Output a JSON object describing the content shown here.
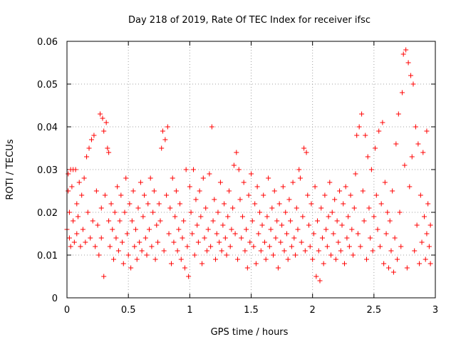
{
  "chart_data": {
    "type": "scatter",
    "title": "Day 218 of 2019, Rate Of TEC Index for receiver ifsc",
    "xlabel": "GPS time / hours",
    "ylabel": "ROTI / TECUs",
    "xlim": [
      0,
      3
    ],
    "ylim": [
      0,
      0.06
    ],
    "xticks": [
      0,
      0.5,
      1,
      1.5,
      2,
      2.5,
      3
    ],
    "xtick_labels": [
      "0",
      "0.5",
      "1",
      "1.5",
      "2",
      "2.5",
      "3"
    ],
    "yticks": [
      0,
      0.01,
      0.02,
      0.03,
      0.04,
      0.05,
      0.06
    ],
    "ytick_labels": [
      "0",
      "0.01",
      "0.02",
      "0.03",
      "0.04",
      "0.05",
      "0.06"
    ],
    "grid": true,
    "marker": "+",
    "color": "#ff0000",
    "series": [
      {
        "name": "ROTI",
        "points": [
          [
            0.0,
            0.016
          ],
          [
            0.01,
            0.025
          ],
          [
            0.01,
            0.029
          ],
          [
            0.02,
            0.02
          ],
          [
            0.02,
            0.014
          ],
          [
            0.03,
            0.03
          ],
          [
            0.03,
            0.012
          ],
          [
            0.04,
            0.026
          ],
          [
            0.05,
            0.03
          ],
          [
            0.05,
            0.018
          ],
          [
            0.06,
            0.013
          ],
          [
            0.07,
            0.03
          ],
          [
            0.08,
            0.022
          ],
          [
            0.08,
            0.015
          ],
          [
            0.09,
            0.019
          ],
          [
            0.1,
            0.027
          ],
          [
            0.11,
            0.012
          ],
          [
            0.12,
            0.024
          ],
          [
            0.13,
            0.016
          ],
          [
            0.14,
            0.028
          ],
          [
            0.15,
            0.013
          ],
          [
            0.16,
            0.033
          ],
          [
            0.17,
            0.02
          ],
          [
            0.18,
            0.035
          ],
          [
            0.19,
            0.014
          ],
          [
            0.2,
            0.037
          ],
          [
            0.21,
            0.018
          ],
          [
            0.22,
            0.038
          ],
          [
            0.23,
            0.012
          ],
          [
            0.24,
            0.025
          ],
          [
            0.25,
            0.017
          ],
          [
            0.26,
            0.01
          ],
          [
            0.27,
            0.043
          ],
          [
            0.28,
            0.021
          ],
          [
            0.28,
            0.014
          ],
          [
            0.29,
            0.042
          ],
          [
            0.3,
            0.005
          ],
          [
            0.3,
            0.039
          ],
          [
            0.31,
            0.024
          ],
          [
            0.32,
            0.041
          ],
          [
            0.33,
            0.035
          ],
          [
            0.34,
            0.018
          ],
          [
            0.34,
            0.034
          ],
          [
            0.35,
            0.012
          ],
          [
            0.36,
            0.022
          ],
          [
            0.37,
            0.016
          ],
          [
            0.38,
            0.009
          ],
          [
            0.39,
            0.02
          ],
          [
            0.4,
            0.014
          ],
          [
            0.41,
            0.026
          ],
          [
            0.42,
            0.011
          ],
          [
            0.43,
            0.018
          ],
          [
            0.44,
            0.024
          ],
          [
            0.45,
            0.013
          ],
          [
            0.46,
            0.008
          ],
          [
            0.47,
            0.02
          ],
          [
            0.48,
            0.028
          ],
          [
            0.49,
            0.015
          ],
          [
            0.5,
            0.01
          ],
          [
            0.51,
            0.022
          ],
          [
            0.52,
            0.007
          ],
          [
            0.53,
            0.018
          ],
          [
            0.54,
            0.025
          ],
          [
            0.55,
            0.012
          ],
          [
            0.56,
            0.016
          ],
          [
            0.57,
            0.009
          ],
          [
            0.58,
            0.021
          ],
          [
            0.59,
            0.013
          ],
          [
            0.6,
            0.027
          ],
          [
            0.61,
            0.011
          ],
          [
            0.62,
            0.019
          ],
          [
            0.63,
            0.024
          ],
          [
            0.64,
            0.014
          ],
          [
            0.65,
            0.01
          ],
          [
            0.66,
            0.022
          ],
          [
            0.67,
            0.016
          ],
          [
            0.68,
            0.028
          ],
          [
            0.69,
            0.012
          ],
          [
            0.7,
            0.02
          ],
          [
            0.71,
            0.025
          ],
          [
            0.72,
            0.009
          ],
          [
            0.73,
            0.017
          ],
          [
            0.74,
            0.013
          ],
          [
            0.75,
            0.022
          ],
          [
            0.76,
            0.018
          ],
          [
            0.77,
            0.035
          ],
          [
            0.78,
            0.039
          ],
          [
            0.79,
            0.011
          ],
          [
            0.8,
            0.037
          ],
          [
            0.81,
            0.024
          ],
          [
            0.82,
            0.04
          ],
          [
            0.83,
            0.015
          ],
          [
            0.84,
            0.021
          ],
          [
            0.85,
            0.008
          ],
          [
            0.86,
            0.028
          ],
          [
            0.87,
            0.013
          ],
          [
            0.88,
            0.019
          ],
          [
            0.89,
            0.025
          ],
          [
            0.9,
            0.011
          ],
          [
            0.91,
            0.016
          ],
          [
            0.92,
            0.022
          ],
          [
            0.93,
            0.009
          ],
          [
            0.94,
            0.014
          ],
          [
            0.95,
            0.018
          ],
          [
            0.96,
            0.007
          ],
          [
            0.97,
            0.03
          ],
          [
            0.98,
            0.012
          ],
          [
            0.99,
            0.005
          ],
          [
            1.0,
            0.026
          ],
          [
            1.01,
            0.02
          ],
          [
            1.02,
            0.015
          ],
          [
            1.03,
            0.03
          ],
          [
            1.04,
            0.01
          ],
          [
            1.05,
            0.023
          ],
          [
            1.06,
            0.017
          ],
          [
            1.07,
            0.013
          ],
          [
            1.08,
            0.025
          ],
          [
            1.09,
            0.019
          ],
          [
            1.1,
            0.008
          ],
          [
            1.11,
            0.028
          ],
          [
            1.12,
            0.014
          ],
          [
            1.13,
            0.021
          ],
          [
            1.14,
            0.011
          ],
          [
            1.15,
            0.016
          ],
          [
            1.16,
            0.029
          ],
          [
            1.17,
            0.012
          ],
          [
            1.18,
            0.04
          ],
          [
            1.19,
            0.018
          ],
          [
            1.2,
            0.023
          ],
          [
            1.21,
            0.009
          ],
          [
            1.22,
            0.015
          ],
          [
            1.23,
            0.02
          ],
          [
            1.24,
            0.013
          ],
          [
            1.25,
            0.027
          ],
          [
            1.26,
            0.011
          ],
          [
            1.27,
            0.017
          ],
          [
            1.28,
            0.022
          ],
          [
            1.29,
            0.014
          ],
          [
            1.3,
            0.01
          ],
          [
            1.31,
            0.019
          ],
          [
            1.32,
            0.025
          ],
          [
            1.33,
            0.012
          ],
          [
            1.34,
            0.016
          ],
          [
            1.35,
            0.021
          ],
          [
            1.36,
            0.031
          ],
          [
            1.37,
            0.015
          ],
          [
            1.38,
            0.034
          ],
          [
            1.39,
            0.009
          ],
          [
            1.4,
            0.03
          ],
          [
            1.41,
            0.023
          ],
          [
            1.42,
            0.014
          ],
          [
            1.43,
            0.019
          ],
          [
            1.44,
            0.027
          ],
          [
            1.45,
            0.011
          ],
          [
            1.46,
            0.016
          ],
          [
            1.47,
            0.007
          ],
          [
            1.48,
            0.024
          ],
          [
            1.49,
            0.013
          ],
          [
            1.5,
            0.029
          ],
          [
            1.51,
            0.018
          ],
          [
            1.52,
            0.012
          ],
          [
            1.53,
            0.022
          ],
          [
            1.54,
            0.008
          ],
          [
            1.55,
            0.026
          ],
          [
            1.56,
            0.015
          ],
          [
            1.57,
            0.02
          ],
          [
            1.58,
            0.011
          ],
          [
            1.59,
            0.017
          ],
          [
            1.6,
            0.024
          ],
          [
            1.61,
            0.013
          ],
          [
            1.62,
            0.009
          ],
          [
            1.63,
            0.019
          ],
          [
            1.64,
            0.028
          ],
          [
            1.65,
            0.012
          ],
          [
            1.66,
            0.016
          ],
          [
            1.67,
            0.021
          ],
          [
            1.68,
            0.01
          ],
          [
            1.69,
            0.025
          ],
          [
            1.7,
            0.014
          ],
          [
            1.71,
            0.018
          ],
          [
            1.72,
            0.007
          ],
          [
            1.73,
            0.022
          ],
          [
            1.74,
            0.013
          ],
          [
            1.75,
            0.017
          ],
          [
            1.76,
            0.026
          ],
          [
            1.77,
            0.011
          ],
          [
            1.78,
            0.02
          ],
          [
            1.79,
            0.015
          ],
          [
            1.8,
            0.009
          ],
          [
            1.81,
            0.023
          ],
          [
            1.82,
            0.018
          ],
          [
            1.83,
            0.012
          ],
          [
            1.84,
            0.027
          ],
          [
            1.85,
            0.014
          ],
          [
            1.86,
            0.01
          ],
          [
            1.87,
            0.021
          ],
          [
            1.88,
            0.016
          ],
          [
            1.89,
            0.03
          ],
          [
            1.9,
            0.028
          ],
          [
            1.91,
            0.013
          ],
          [
            1.92,
            0.019
          ],
          [
            1.93,
            0.035
          ],
          [
            1.94,
            0.011
          ],
          [
            1.95,
            0.034
          ],
          [
            1.96,
            0.024
          ],
          [
            1.97,
            0.017
          ],
          [
            1.98,
            0.012
          ],
          [
            1.99,
            0.022
          ],
          [
            2.0,
            0.009
          ],
          [
            2.01,
            0.015
          ],
          [
            2.02,
            0.026
          ],
          [
            2.03,
            0.005
          ],
          [
            2.04,
            0.018
          ],
          [
            2.05,
            0.011
          ],
          [
            2.06,
            0.004
          ],
          [
            2.07,
            0.021
          ],
          [
            2.08,
            0.014
          ],
          [
            2.09,
            0.008
          ],
          [
            2.1,
            0.024
          ],
          [
            2.11,
            0.016
          ],
          [
            2.12,
            0.012
          ],
          [
            2.13,
            0.019
          ],
          [
            2.14,
            0.027
          ],
          [
            2.15,
            0.01
          ],
          [
            2.16,
            0.02
          ],
          [
            2.17,
            0.015
          ],
          [
            2.18,
            0.023
          ],
          [
            2.19,
            0.009
          ],
          [
            2.2,
            0.018
          ],
          [
            2.21,
            0.013
          ],
          [
            2.22,
            0.025
          ],
          [
            2.23,
            0.011
          ],
          [
            2.24,
            0.017
          ],
          [
            2.25,
            0.022
          ],
          [
            2.26,
            0.008
          ],
          [
            2.27,
            0.026
          ],
          [
            2.28,
            0.014
          ],
          [
            2.29,
            0.019
          ],
          [
            2.3,
            0.012
          ],
          [
            2.31,
            0.024
          ],
          [
            2.32,
            0.016
          ],
          [
            2.33,
            0.01
          ],
          [
            2.34,
            0.021
          ],
          [
            2.35,
            0.029
          ],
          [
            2.36,
            0.038
          ],
          [
            2.37,
            0.015
          ],
          [
            2.38,
            0.04
          ],
          [
            2.39,
            0.012
          ],
          [
            2.4,
            0.043
          ],
          [
            2.41,
            0.025
          ],
          [
            2.42,
            0.018
          ],
          [
            2.43,
            0.038
          ],
          [
            2.44,
            0.009
          ],
          [
            2.45,
            0.033
          ],
          [
            2.46,
            0.021
          ],
          [
            2.47,
            0.014
          ],
          [
            2.48,
            0.03
          ],
          [
            2.49,
            0.011
          ],
          [
            2.5,
            0.019
          ],
          [
            2.51,
            0.035
          ],
          [
            2.52,
            0.024
          ],
          [
            2.53,
            0.016
          ],
          [
            2.54,
            0.039
          ],
          [
            2.55,
            0.012
          ],
          [
            2.56,
            0.022
          ],
          [
            2.57,
            0.041
          ],
          [
            2.58,
            0.008
          ],
          [
            2.59,
            0.027
          ],
          [
            2.6,
            0.015
          ],
          [
            2.61,
            0.02
          ],
          [
            2.62,
            0.007
          ],
          [
            2.63,
            0.018
          ],
          [
            2.64,
            0.011
          ],
          [
            2.65,
            0.025
          ],
          [
            2.66,
            0.006
          ],
          [
            2.67,
            0.014
          ],
          [
            2.68,
            0.036
          ],
          [
            2.69,
            0.009
          ],
          [
            2.7,
            0.043
          ],
          [
            2.71,
            0.02
          ],
          [
            2.72,
            0.012
          ],
          [
            2.73,
            0.048
          ],
          [
            2.74,
            0.057
          ],
          [
            2.75,
            0.031
          ],
          [
            2.76,
            0.058
          ],
          [
            2.77,
            0.007
          ],
          [
            2.78,
            0.055
          ],
          [
            2.79,
            0.026
          ],
          [
            2.8,
            0.052
          ],
          [
            2.81,
            0.033
          ],
          [
            2.82,
            0.05
          ],
          [
            2.83,
            0.011
          ],
          [
            2.84,
            0.04
          ],
          [
            2.85,
            0.017
          ],
          [
            2.86,
            0.036
          ],
          [
            2.87,
            0.008
          ],
          [
            2.88,
            0.024
          ],
          [
            2.89,
            0.013
          ],
          [
            2.9,
            0.034
          ],
          [
            2.91,
            0.019
          ],
          [
            2.92,
            0.009
          ],
          [
            2.93,
            0.039
          ],
          [
            2.93,
            0.015
          ],
          [
            2.94,
            0.022
          ],
          [
            2.95,
            0.012
          ],
          [
            2.96,
            0.008
          ],
          [
            2.96,
            0.017
          ]
        ]
      }
    ]
  }
}
